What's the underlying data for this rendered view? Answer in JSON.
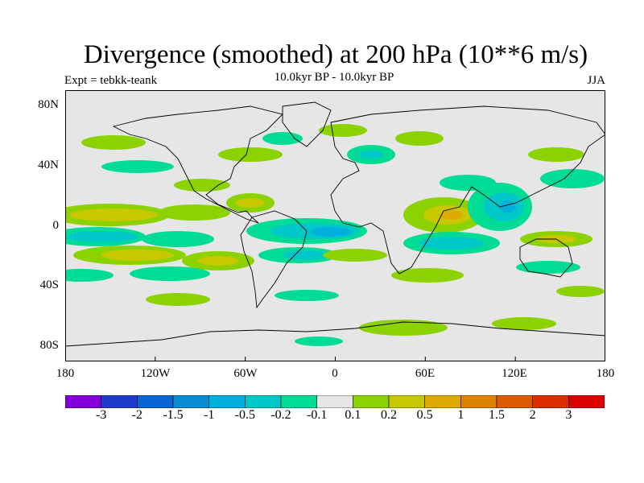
{
  "title": "Divergence (smoothed) at 200 hPa (10**6 m/s)",
  "subtitle": "10.0kyr BP - 10.0kyr BP",
  "expt_label": "Expt = tebkk-teank",
  "season": "JJA",
  "lat_labels": [
    "80N",
    "40N",
    "0",
    "40S",
    "80S"
  ],
  "lon_labels": [
    "180",
    "120W",
    "60W",
    "0",
    "60E",
    "120E",
    "180"
  ],
  "colorbar": {
    "labels": [
      "-3",
      "-2",
      "-1.5",
      "-1",
      "-0.5",
      "-0.2",
      "-0.1",
      "0.1",
      "0.2",
      "0.5",
      "1",
      "1.5",
      "2",
      "3"
    ],
    "colors": [
      "#8200dc",
      "#1e3cc8",
      "#0a64d2",
      "#0a8cd2",
      "#00afdc",
      "#00c8c8",
      "#00dc96",
      "#e6e6e6",
      "#8cd200",
      "#c8c800",
      "#dcaa00",
      "#dc8200",
      "#dc5a00",
      "#dc2d00",
      "#dc0000"
    ]
  },
  "map": {
    "background_color": "#e6e6e6",
    "coastline_color": "#000000",
    "fill_colors": {
      "pos_weak": "#8cd200",
      "pos_mid": "#c8c800",
      "pos_strong": "#dcaa00",
      "neg_weak": "#00dc96",
      "neg_mid": "#00c8c8",
      "neg_strong": "#00afdc"
    }
  }
}
